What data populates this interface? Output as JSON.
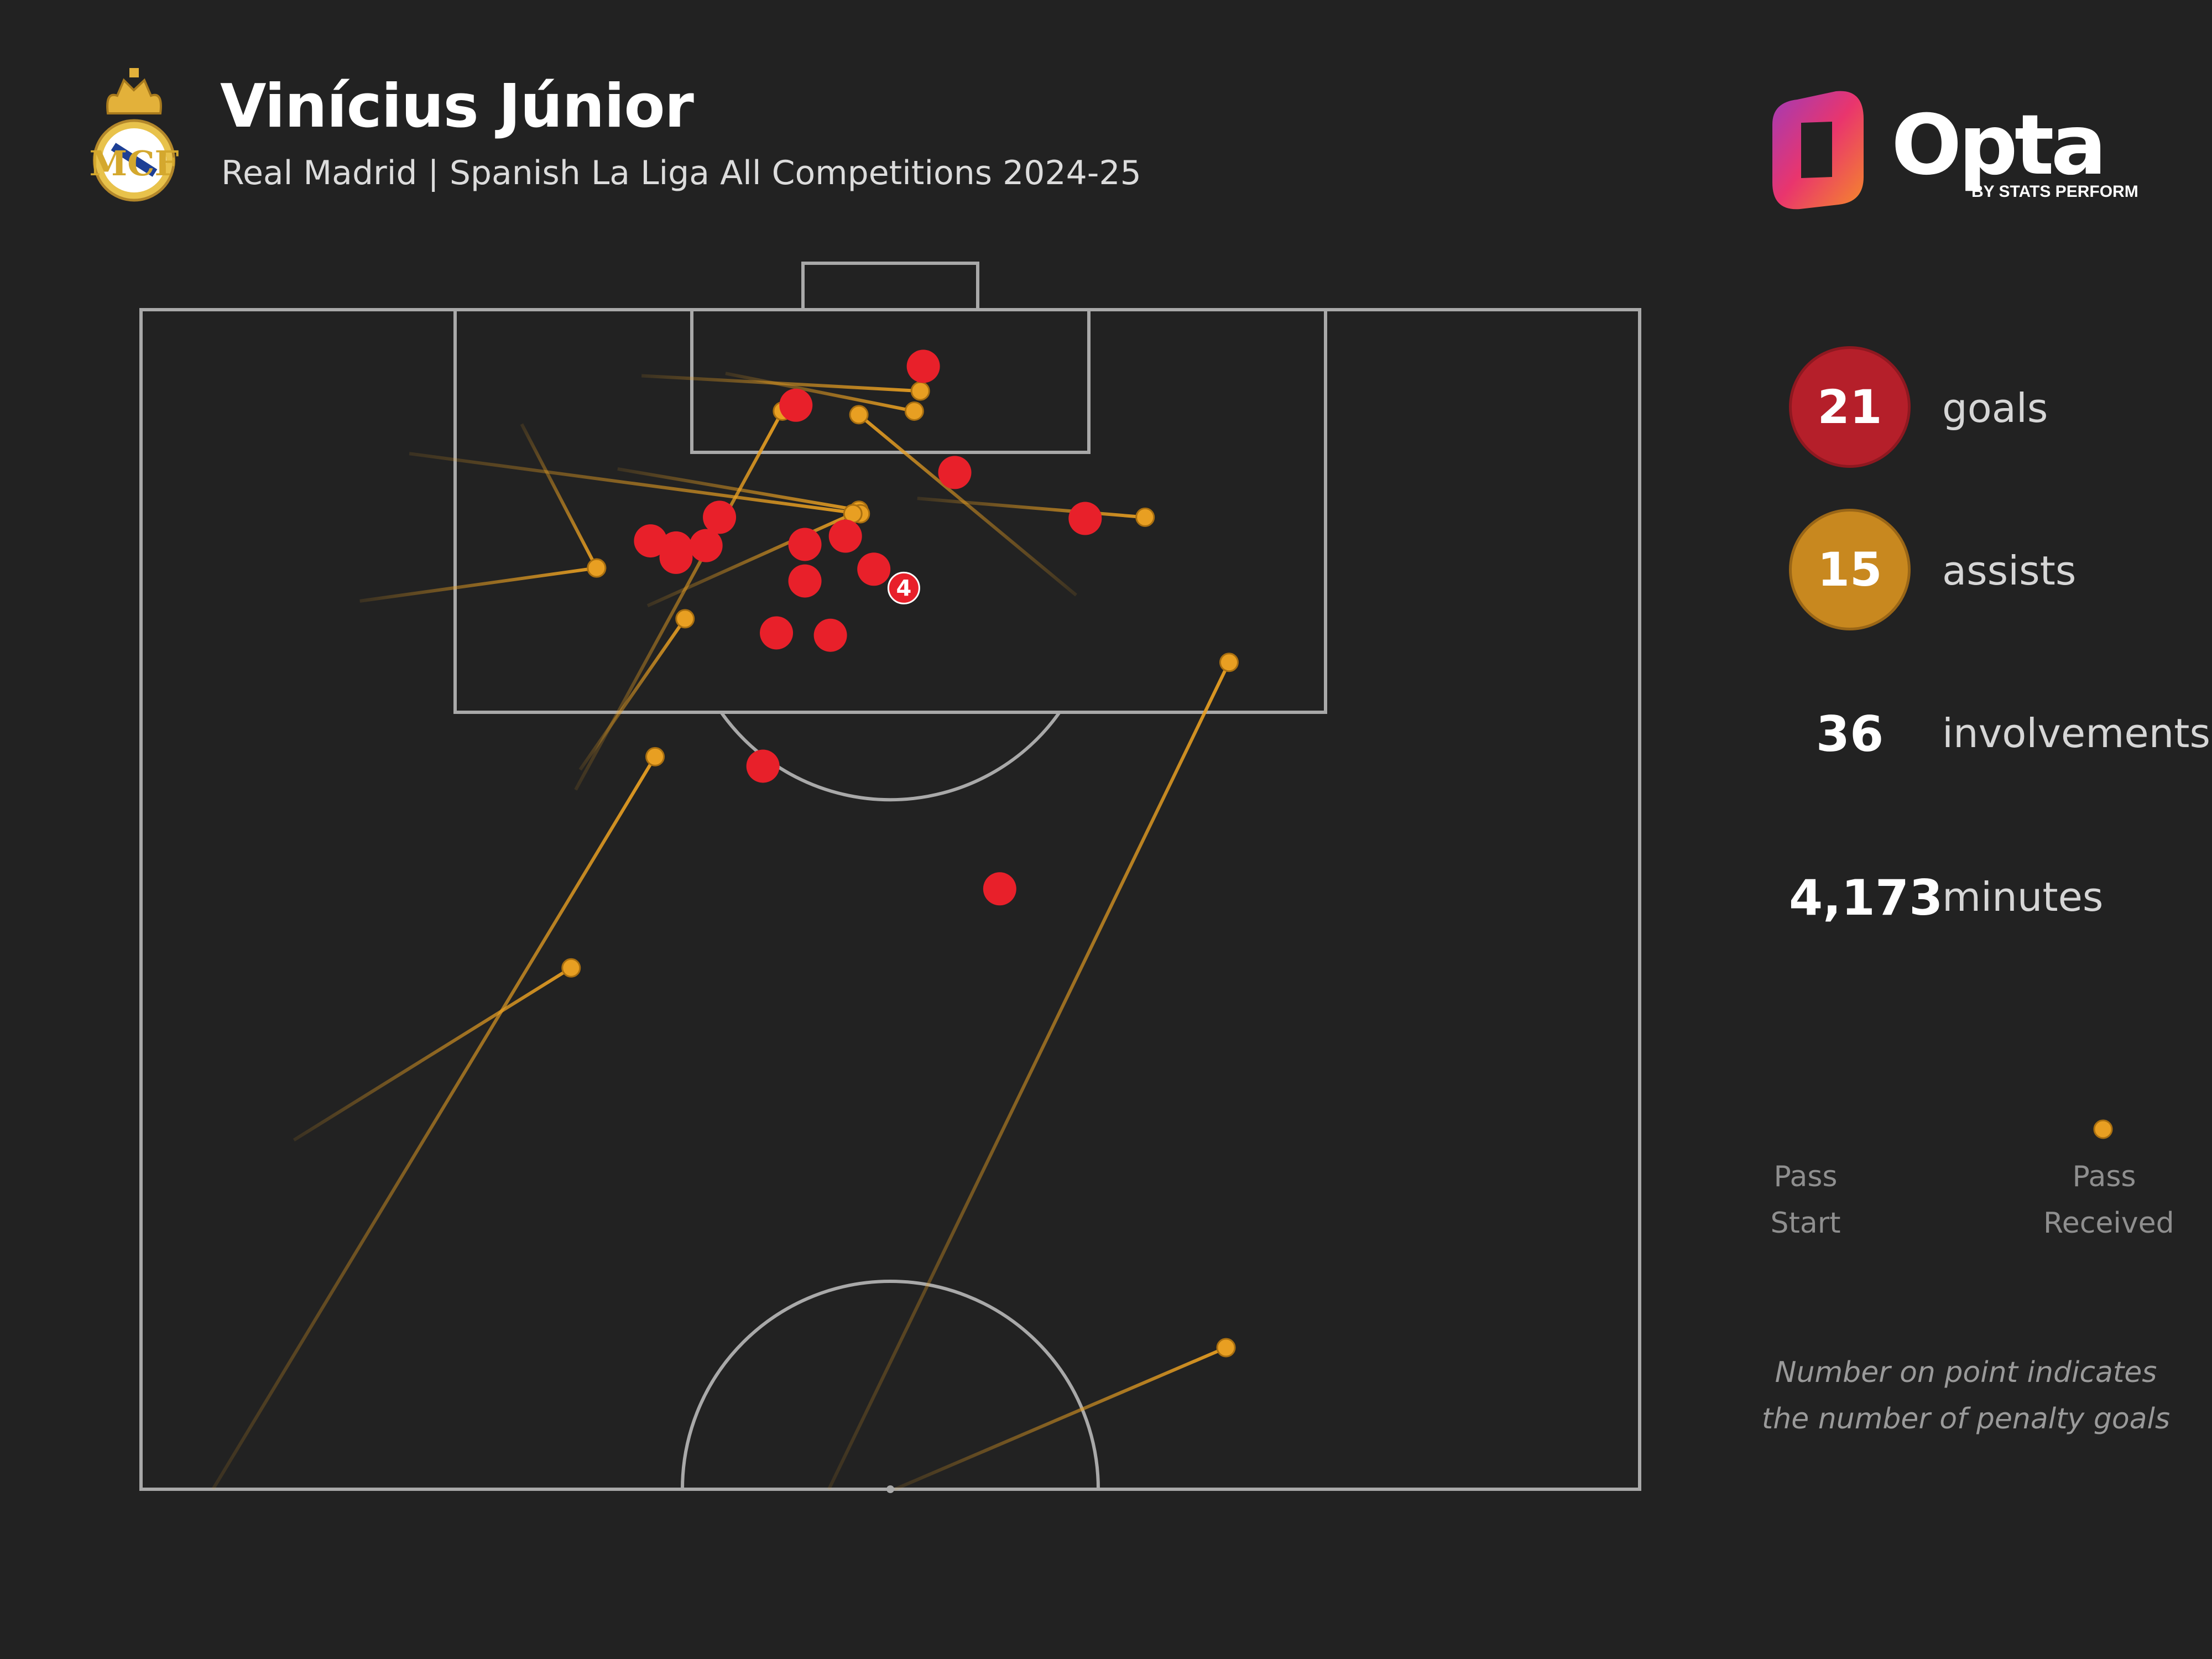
{
  "header": {
    "title": "Vinícius Júnior",
    "subtitle": "Real Madrid | Spanish La Liga All Competitions 2024-25"
  },
  "brand": {
    "logo_text": "Opta",
    "logo_sub": "BY STATS PERFORM",
    "crest_icon": "real-madrid-crest"
  },
  "colors": {
    "background": "#222222",
    "goal": "#e8202a",
    "assist": "#e89f22",
    "pitch_line": "#a9a9a9"
  },
  "stats": {
    "goals_value": "21",
    "goals_label": "goals",
    "assists_value": "15",
    "assists_label": "assists",
    "involvements_value": "36",
    "involvements_label": "involvements",
    "minutes_value": "4,173",
    "minutes_label": "minutes"
  },
  "legend": {
    "start_label_1": "Pass",
    "start_label_2": "Start",
    "end_label_1": "Pass",
    "end_label_2": "Received"
  },
  "note": {
    "line1": "Number on point indicates",
    "line2": "the number of penalty goals"
  },
  "chart_data": {
    "type": "scatter",
    "coordinate_system": "pitch x 0-100 left to right, y 0-100 from halfway line to goal line",
    "goals": [
      {
        "x": 52.2,
        "y": 95.2
      },
      {
        "x": 43.7,
        "y": 91.9
      },
      {
        "x": 54.3,
        "y": 86.2
      },
      {
        "x": 63.0,
        "y": 82.3
      },
      {
        "x": 38.6,
        "y": 82.4
      },
      {
        "x": 34.0,
        "y": 80.4
      },
      {
        "x": 35.7,
        "y": 79.8
      },
      {
        "x": 37.7,
        "y": 80.0
      },
      {
        "x": 35.7,
        "y": 79.0
      },
      {
        "x": 44.3,
        "y": 80.1
      },
      {
        "x": 47.0,
        "y": 80.8
      },
      {
        "x": 44.3,
        "y": 77.0
      },
      {
        "x": 48.9,
        "y": 78.0
      },
      {
        "x": 42.4,
        "y": 72.6
      },
      {
        "x": 46.0,
        "y": 72.4
      },
      {
        "x": 41.5,
        "y": 61.3
      },
      {
        "x": 57.3,
        "y": 50.9
      },
      {
        "x": 50.9,
        "y": 76.4,
        "penalties": 4,
        "label": "4"
      }
    ],
    "assists": [
      {
        "start": [
          33.4,
          94.4
        ],
        "end": [
          52.0,
          93.1
        ]
      },
      {
        "start": [
          39.0,
          94.6
        ],
        "end": [
          51.6,
          91.4
        ]
      },
      {
        "start": [
          62.4,
          75.8
        ],
        "end": [
          47.9,
          91.1
        ]
      },
      {
        "start": [
          31.8,
          86.5
        ],
        "end": [
          47.9,
          83.0
        ]
      },
      {
        "start": [
          17.9,
          87.8
        ],
        "end": [
          48.0,
          82.7
        ]
      },
      {
        "start": [
          51.8,
          84.0
        ],
        "end": [
          67.0,
          82.4
        ]
      },
      {
        "start": [
          33.8,
          74.9
        ],
        "end": [
          47.5,
          82.7
        ]
      },
      {
        "start": [
          25.4,
          90.3
        ],
        "end": [
          30.4,
          78.1
        ]
      },
      {
        "start": [
          14.6,
          75.3
        ],
        "end": [
          30.4,
          78.1
        ]
      },
      {
        "start": [
          29.3,
          61.0
        ],
        "end": [
          36.3,
          73.8
        ]
      },
      {
        "start": [
          29.0,
          59.3
        ],
        "end": [
          42.8,
          91.4
        ]
      },
      {
        "start": [
          4.8,
          0.0
        ],
        "end": [
          34.3,
          62.1
        ]
      },
      {
        "start": [
          10.2,
          29.6
        ],
        "end": [
          28.7,
          44.2
        ]
      },
      {
        "start": [
          45.9,
          0.0
        ],
        "end": [
          72.6,
          70.1
        ]
      },
      {
        "start": [
          50.3,
          0.0
        ],
        "end": [
          72.4,
          12.0
        ]
      }
    ]
  }
}
